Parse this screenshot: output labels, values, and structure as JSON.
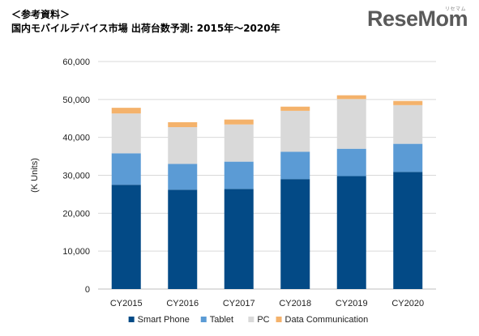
{
  "header": {
    "ref_label": "＜参考資料＞",
    "title": "国内モバイルデバイス市場 出荷台数予測: 2015年～2020年"
  },
  "logo": {
    "text": "ReseMom",
    "sub": "リセマム"
  },
  "chart_data": {
    "type": "bar",
    "stacked": true,
    "title": "国内モバイルデバイス市場 出荷台数予測: 2015年～2020年",
    "xlabel": "",
    "ylabel": "(K Units)",
    "ylim": [
      0,
      60000
    ],
    "yticks": [
      0,
      10000,
      20000,
      30000,
      40000,
      50000,
      60000
    ],
    "ytick_labels": [
      "0",
      "10,000",
      "20,000",
      "30,000",
      "40,000",
      "50,000",
      "60,000"
    ],
    "grid": true,
    "legend": "bottom",
    "categories": [
      "CY2015",
      "CY2016",
      "CY2017",
      "CY2018",
      "CY2019",
      "CY2020"
    ],
    "series": [
      {
        "name": "Smart Phone",
        "color": "#034a86",
        "values": [
          27500,
          26200,
          26400,
          29000,
          29800,
          30900
        ]
      },
      {
        "name": "Tablet",
        "color": "#5b9bd5",
        "values": [
          8300,
          6800,
          7200,
          7200,
          7200,
          7400
        ]
      },
      {
        "name": "PC",
        "color": "#d9d9d9",
        "values": [
          10500,
          9700,
          9800,
          10800,
          13100,
          10200
        ]
      },
      {
        "name": "Data Communication",
        "color": "#f4b26b",
        "values": [
          1500,
          1300,
          1300,
          1100,
          1000,
          1100
        ]
      }
    ]
  }
}
